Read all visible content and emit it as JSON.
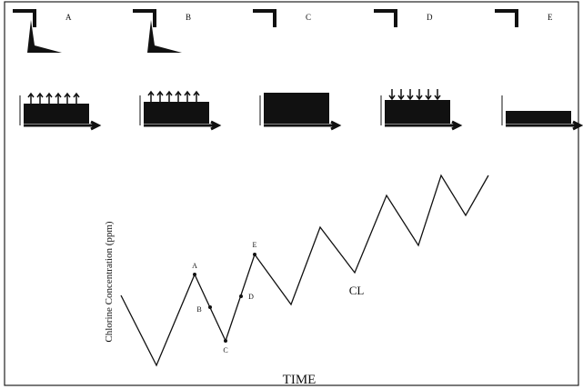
{
  "panels": [
    {
      "label": "A"
    },
    {
      "label": "B"
    },
    {
      "label": "C"
    },
    {
      "label": "D"
    },
    {
      "label": "E"
    }
  ],
  "graph": {
    "y_label": "Chlorine Concentration (ppm)",
    "x_label": "TIME",
    "curve_label": "CL",
    "point_labels": [
      "A",
      "B",
      "C",
      "D",
      "E"
    ]
  }
}
